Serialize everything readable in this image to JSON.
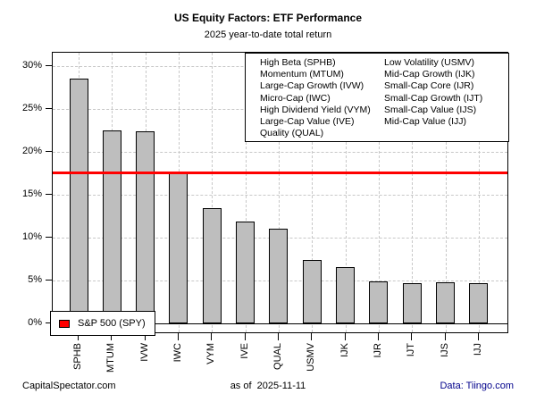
{
  "title": "US Equity Factors: ETF Performance",
  "subtitle": "2025 year-to-date total return",
  "chart_data": {
    "type": "bar",
    "categories": [
      "SPHB",
      "MTUM",
      "IVW",
      "IWC",
      "VYM",
      "IVE",
      "QUAL",
      "USMV",
      "IJK",
      "IJR",
      "IJT",
      "IJS",
      "IJJ"
    ],
    "values": [
      28.5,
      22.5,
      22.4,
      17.5,
      13.4,
      11.9,
      11.0,
      7.4,
      6.6,
      4.9,
      4.7,
      4.8,
      4.7
    ],
    "title": "US Equity Factors: ETF Performance",
    "subtitle": "2025 year-to-date total return",
    "xlabel": "",
    "ylabel": "",
    "ylim": [
      0,
      31.5
    ],
    "ytick_values": [
      0,
      5,
      10,
      15,
      20,
      25,
      30
    ],
    "ytick_labels": [
      "0%",
      "5%",
      "10%",
      "15%",
      "20%",
      "25%",
      "30%"
    ],
    "grid": "dashed, horizontal at ticks and vertical at bar centers",
    "bar_color": "#bebebe",
    "bar_border_color": "#000000",
    "grid_color": "#c8c8c8",
    "reference_line": {
      "label": "S&P 500 (SPY)",
      "value": 17.6,
      "color": "#ff0000"
    },
    "legend_position": "top-right box inside plot",
    "factor_legend": {
      "column1": [
        "High Beta (SPHB)",
        "Momentum (MTUM)",
        "Large-Cap Growth (IVW)",
        "Micro-Cap (IWC)",
        "High Dividend Yield (VYM)",
        "Large-Cap Value (IVE)",
        "Quality (QUAL)"
      ],
      "column2": [
        "Low Volatility (USMV)",
        "Mid-Cap Growth (IJK)",
        "Small-Cap Core (IJR)",
        "Small-Cap Growth (IJT)",
        "Small-Cap Value (IJS)",
        "Mid-Cap Value (IJJ)"
      ]
    }
  },
  "footer": {
    "left": "CapitalSpectator.com",
    "center": "as of  2025-11-11",
    "right": "Data: Tiingo.com",
    "right_color": "#00008b"
  }
}
